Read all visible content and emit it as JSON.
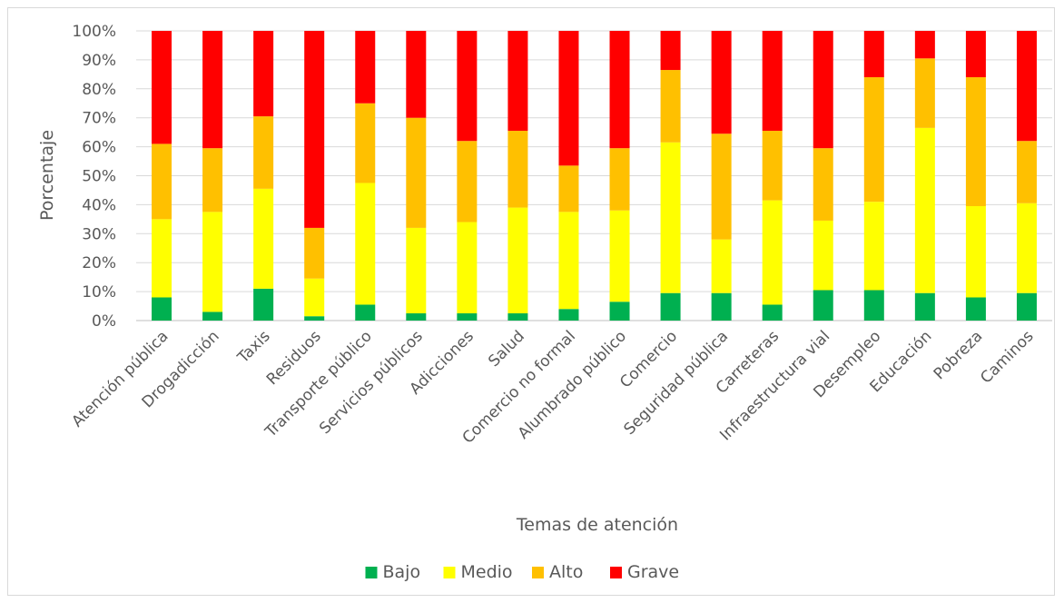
{
  "chart_data": {
    "type": "bar",
    "stacked": "percent",
    "title": "",
    "xlabel": "Temas de atención",
    "ylabel": "Porcentaje",
    "ylim": [
      0,
      100
    ],
    "yticks": [
      "0%",
      "10%",
      "20%",
      "30%",
      "40%",
      "50%",
      "60%",
      "70%",
      "80%",
      "90%",
      "100%"
    ],
    "grid": true,
    "legend_position": "bottom",
    "categories": [
      "Atención pública",
      "Drogadicción",
      "Taxis",
      "Residuos",
      "Transporte público",
      "Servicios públicos",
      "Adicciones",
      "Salud",
      "Comercio no formal",
      "Alumbrado público",
      "Comercio",
      "Seguridad pública",
      "Carreteras",
      "Infraestructura vial",
      "Desempleo",
      "Educación",
      "Pobreza",
      "Caminos"
    ],
    "series": [
      {
        "name": "Bajo",
        "color": "#00b050",
        "values": [
          8,
          3,
          11,
          1.5,
          5.5,
          2.5,
          2.5,
          2.5,
          4,
          6.5,
          9.5,
          9.5,
          5.5,
          10.5,
          10.5,
          9.5,
          8,
          9.5
        ]
      },
      {
        "name": "Medio",
        "color": "#ffff00",
        "values": [
          27,
          34.5,
          34.5,
          13,
          42,
          29.5,
          31.5,
          36.5,
          33.5,
          31.5,
          52,
          18.5,
          36,
          24,
          30.5,
          57,
          31.5,
          31
        ]
      },
      {
        "name": "Alto",
        "color": "#ffc000",
        "values": [
          26,
          22,
          25,
          17.5,
          27.5,
          38,
          28,
          26.5,
          16,
          21.5,
          25,
          36.5,
          24,
          25,
          43,
          24,
          44.5,
          21.5
        ]
      },
      {
        "name": "Grave",
        "color": "#ff0000",
        "values": [
          39,
          40.5,
          29.5,
          68,
          25,
          30,
          38,
          34.5,
          46.5,
          40.5,
          13.5,
          35.5,
          34.5,
          40.5,
          16,
          9.5,
          16,
          38
        ]
      }
    ]
  }
}
